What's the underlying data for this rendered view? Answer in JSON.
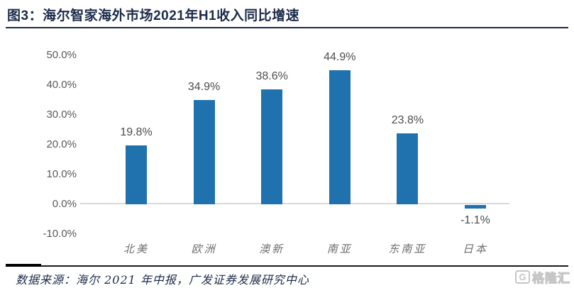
{
  "figure": {
    "title": "图3：海尔智家海外市场2021年H1收入同比增速",
    "source": "数据来源：海尔 2021 年中报，广发证券发展研究中心",
    "logo_g": "G",
    "logo_text": "格隆汇"
  },
  "colors": {
    "bar": "#1F72AE",
    "title_navy": "#1C2B4A",
    "axis_label_gray": "#595959",
    "value_label_gray": "#4D4D4D",
    "baseline_gray": "#D9D9D9"
  },
  "chart_data": {
    "type": "bar",
    "title": "海尔智家海外市场2021年H1收入同比增速",
    "categories": [
      "北美",
      "欧洲",
      "澳新",
      "南亚",
      "东南亚",
      "日本"
    ],
    "values": [
      19.8,
      34.9,
      38.6,
      44.9,
      23.8,
      -1.1
    ],
    "value_labels": [
      "19.8%",
      "34.9%",
      "38.6%",
      "44.9%",
      "23.8%",
      "-1.1%"
    ],
    "yticks": [
      50,
      40,
      30,
      20,
      10,
      0,
      -10
    ],
    "ytick_labels": [
      "50.0%",
      "40.0%",
      "30.0%",
      "20.0%",
      "10.0%",
      "0.0%",
      "-10.0%"
    ],
    "ylim": [
      -10,
      50
    ],
    "xlabel": "",
    "ylabel": "",
    "grid": false,
    "legend": "none"
  }
}
